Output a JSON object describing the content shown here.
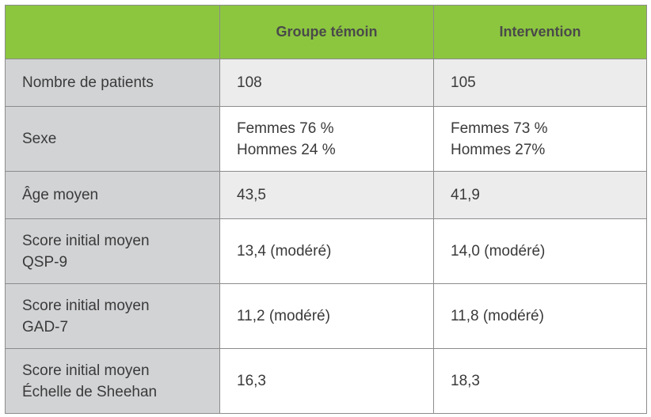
{
  "table": {
    "headers": [
      "",
      "Groupe témoin",
      "Intervention"
    ],
    "rows": [
      {
        "label": [
          "Nombre de patients"
        ],
        "control": [
          "108"
        ],
        "intervention": [
          "105"
        ]
      },
      {
        "label": [
          "Sexe"
        ],
        "control": [
          "Femmes 76 %",
          "Hommes 24 %"
        ],
        "intervention": [
          "Femmes 73 %",
          "Hommes 27%"
        ]
      },
      {
        "label": [
          "Âge moyen"
        ],
        "control": [
          "43,5"
        ],
        "intervention": [
          "41,9"
        ]
      },
      {
        "label": [
          "Score initial moyen",
          "QSP-9"
        ],
        "control": [
          "13,4 (modéré)"
        ],
        "intervention": [
          "14,0 (modéré)"
        ]
      },
      {
        "label": [
          "Score initial moyen",
          "GAD-7"
        ],
        "control": [
          "11,2 (modéré)"
        ],
        "intervention": [
          "11,8 (modéré)"
        ]
      },
      {
        "label": [
          "Score initial moyen",
          "Échelle de Sheehan"
        ],
        "control": [
          "16,3"
        ],
        "intervention": [
          "18,3"
        ]
      }
    ]
  },
  "colors": {
    "header_bg": "#8cc63f",
    "label_col_bg": "#d2d3d5",
    "shaded_row_bg": "#ececed",
    "border": "#8c8c8c"
  }
}
